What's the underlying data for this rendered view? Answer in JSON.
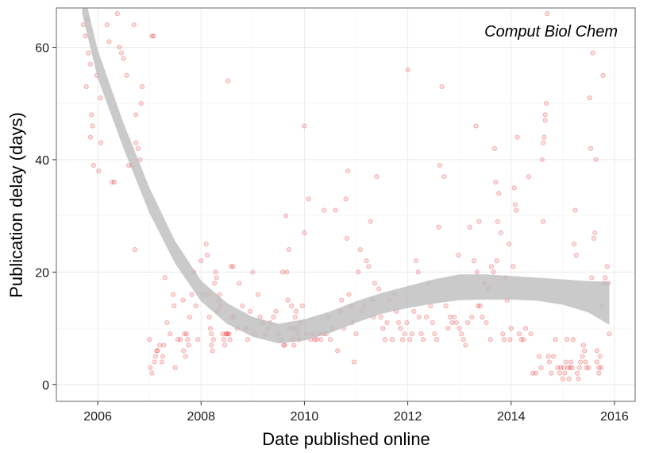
{
  "chart_data": {
    "type": "scatter",
    "title": "",
    "annotation": "Comput Biol Chem",
    "xlabel": "Date published online",
    "ylabel": "Publication delay (days)",
    "xlim": [
      2005.2,
      2016.4
    ],
    "ylim": [
      -3,
      67
    ],
    "x_ticks": [
      2006,
      2008,
      2010,
      2012,
      2014,
      2016
    ],
    "x_tick_labels": [
      "2006",
      "2008",
      "2010",
      "2012",
      "2014",
      "2016"
    ],
    "y_ticks": [
      0,
      20,
      40,
      60
    ],
    "y_tick_labels": [
      "0",
      "20",
      "40",
      "60"
    ],
    "grid": true,
    "colors": {
      "points": "#e41a1c",
      "ribbon": "#bdbdbd",
      "grid": "#ebebeb",
      "border": "#7f7f7f"
    },
    "smooth": {
      "x": [
        2005.7,
        2006.0,
        2006.5,
        2007.0,
        2007.5,
        2008.0,
        2008.5,
        2009.0,
        2009.5,
        2010.0,
        2010.5,
        2011.0,
        2011.5,
        2012.0,
        2012.5,
        2013.0,
        2013.5,
        2014.0,
        2014.5,
        2015.0,
        2015.5,
        2015.9
      ],
      "upper": [
        71.0,
        59.5,
        46.5,
        35.0,
        25.5,
        18.5,
        14.5,
        12.0,
        10.8,
        11.6,
        13.0,
        14.8,
        16.3,
        17.5,
        18.7,
        19.6,
        19.6,
        19.3,
        19.0,
        18.7,
        18.4,
        18.3
      ],
      "lower": [
        66.0,
        54.5,
        42.0,
        30.5,
        21.5,
        14.8,
        10.8,
        8.5,
        7.3,
        7.8,
        9.2,
        11.0,
        12.6,
        13.6,
        14.4,
        15.0,
        15.1,
        15.1,
        14.9,
        14.2,
        12.8,
        10.6
      ]
    },
    "points": [
      [
        2005.72,
        64
      ],
      [
        2005.76,
        62
      ],
      [
        2005.8,
        65
      ],
      [
        2005.78,
        53
      ],
      [
        2005.82,
        59
      ],
      [
        2005.86,
        57
      ],
      [
        2005.88,
        48
      ],
      [
        2005.9,
        46
      ],
      [
        2005.86,
        44
      ],
      [
        2005.92,
        39
      ],
      [
        2005.98,
        55
      ],
      [
        2006.05,
        51
      ],
      [
        2006.02,
        38
      ],
      [
        2006.06,
        43
      ],
      [
        2006.18,
        64
      ],
      [
        2006.22,
        61
      ],
      [
        2006.28,
        36
      ],
      [
        2006.32,
        36
      ],
      [
        2006.38,
        66
      ],
      [
        2006.42,
        60
      ],
      [
        2006.46,
        59
      ],
      [
        2006.5,
        58
      ],
      [
        2006.56,
        55
      ],
      [
        2006.6,
        39
      ],
      [
        2006.66,
        39
      ],
      [
        2006.7,
        64
      ],
      [
        2006.74,
        48
      ],
      [
        2006.74,
        43
      ],
      [
        2006.78,
        42
      ],
      [
        2006.82,
        40
      ],
      [
        2006.84,
        50
      ],
      [
        2006.86,
        53
      ],
      [
        2006.72,
        24
      ],
      [
        2007.05,
        62
      ],
      [
        2007.08,
        62
      ],
      [
        2007.0,
        8
      ],
      [
        2007.02,
        3
      ],
      [
        2007.05,
        2
      ],
      [
        2007.1,
        4
      ],
      [
        2007.12,
        5
      ],
      [
        2007.14,
        6
      ],
      [
        2007.16,
        6
      ],
      [
        2007.2,
        7
      ],
      [
        2007.24,
        4
      ],
      [
        2007.26,
        5
      ],
      [
        2007.28,
        7
      ],
      [
        2007.3,
        19
      ],
      [
        2007.34,
        11
      ],
      [
        2007.4,
        9
      ],
      [
        2007.46,
        16
      ],
      [
        2007.48,
        14
      ],
      [
        2007.5,
        3
      ],
      [
        2007.55,
        8
      ],
      [
        2007.6,
        8
      ],
      [
        2007.65,
        15
      ],
      [
        2007.68,
        9
      ],
      [
        2007.72,
        9
      ],
      [
        2007.74,
        8
      ],
      [
        2007.78,
        12
      ],
      [
        2007.82,
        16
      ],
      [
        2007.86,
        20
      ],
      [
        2007.9,
        14
      ],
      [
        2007.94,
        8
      ],
      [
        2007.66,
        6
      ],
      [
        2007.7,
        5
      ],
      [
        2007.76,
        7
      ],
      [
        2008.0,
        22
      ],
      [
        2008.04,
        16
      ],
      [
        2008.1,
        25
      ],
      [
        2008.12,
        23
      ],
      [
        2008.14,
        16
      ],
      [
        2008.16,
        12
      ],
      [
        2008.18,
        10
      ],
      [
        2008.2,
        9
      ],
      [
        2008.24,
        8
      ],
      [
        2008.26,
        18
      ],
      [
        2008.28,
        20
      ],
      [
        2008.3,
        19
      ],
      [
        2008.34,
        15
      ],
      [
        2008.38,
        14
      ],
      [
        2008.42,
        9
      ],
      [
        2008.44,
        8
      ],
      [
        2008.46,
        7
      ],
      [
        2008.48,
        9
      ],
      [
        2008.5,
        9
      ],
      [
        2008.52,
        9
      ],
      [
        2008.54,
        9
      ],
      [
        2008.56,
        8
      ],
      [
        2008.52,
        54
      ],
      [
        2008.58,
        21
      ],
      [
        2008.62,
        21
      ],
      [
        2008.64,
        12
      ],
      [
        2008.7,
        10
      ],
      [
        2008.74,
        18
      ],
      [
        2008.8,
        14
      ],
      [
        2008.86,
        10
      ],
      [
        2008.9,
        8
      ],
      [
        2008.95,
        13
      ],
      [
        2008.2,
        7
      ],
      [
        2008.22,
        6
      ],
      [
        2008.32,
        13
      ],
      [
        2008.36,
        16
      ],
      [
        2008.6,
        12
      ],
      [
        2009.0,
        20
      ],
      [
        2009.04,
        9
      ],
      [
        2009.1,
        16
      ],
      [
        2009.14,
        12
      ],
      [
        2009.2,
        11
      ],
      [
        2009.25,
        9
      ],
      [
        2009.3,
        10
      ],
      [
        2009.34,
        11
      ],
      [
        2009.4,
        12
      ],
      [
        2009.45,
        13
      ],
      [
        2009.5,
        9
      ],
      [
        2009.55,
        8
      ],
      [
        2009.58,
        20
      ],
      [
        2009.62,
        7
      ],
      [
        2009.64,
        30
      ],
      [
        2009.66,
        20
      ],
      [
        2009.68,
        15
      ],
      [
        2009.7,
        24
      ],
      [
        2009.72,
        10
      ],
      [
        2009.75,
        14
      ],
      [
        2009.78,
        8
      ],
      [
        2009.8,
        10
      ],
      [
        2009.82,
        12
      ],
      [
        2009.84,
        13
      ],
      [
        2009.86,
        10
      ],
      [
        2009.88,
        9
      ],
      [
        2009.9,
        8
      ],
      [
        2009.92,
        11
      ],
      [
        2009.96,
        14
      ],
      [
        2009.6,
        7
      ],
      [
        2009.8,
        7
      ],
      [
        2010.0,
        46
      ],
      [
        2010.0,
        27
      ],
      [
        2010.04,
        9
      ],
      [
        2010.08,
        33
      ],
      [
        2010.12,
        8
      ],
      [
        2010.16,
        9
      ],
      [
        2010.2,
        8
      ],
      [
        2010.24,
        8
      ],
      [
        2010.28,
        9
      ],
      [
        2010.32,
        8
      ],
      [
        2010.36,
        9
      ],
      [
        2010.38,
        31
      ],
      [
        2010.42,
        9
      ],
      [
        2010.46,
        12
      ],
      [
        2010.5,
        8
      ],
      [
        2010.55,
        10
      ],
      [
        2010.6,
        31
      ],
      [
        2010.64,
        6
      ],
      [
        2010.7,
        13
      ],
      [
        2010.72,
        15
      ],
      [
        2010.76,
        10
      ],
      [
        2010.8,
        33
      ],
      [
        2010.84,
        38
      ],
      [
        2010.82,
        26
      ],
      [
        2010.86,
        16
      ],
      [
        2010.9,
        14
      ],
      [
        2010.92,
        11
      ],
      [
        2010.96,
        4
      ],
      [
        2011.0,
        9
      ],
      [
        2011.04,
        20
      ],
      [
        2011.08,
        24
      ],
      [
        2011.12,
        13
      ],
      [
        2011.16,
        14
      ],
      [
        2011.2,
        22
      ],
      [
        2011.24,
        21
      ],
      [
        2011.28,
        29
      ],
      [
        2011.32,
        15
      ],
      [
        2011.34,
        12
      ],
      [
        2011.4,
        37
      ],
      [
        2011.36,
        18
      ],
      [
        2011.44,
        17
      ],
      [
        2011.48,
        12
      ],
      [
        2011.52,
        10
      ],
      [
        2011.56,
        8
      ],
      [
        2011.6,
        11
      ],
      [
        2011.64,
        15
      ],
      [
        2011.7,
        8
      ],
      [
        2011.74,
        16
      ],
      [
        2011.78,
        13
      ],
      [
        2011.82,
        11
      ],
      [
        2011.86,
        10
      ],
      [
        2011.9,
        8
      ],
      [
        2011.94,
        9
      ],
      [
        2011.98,
        11
      ],
      [
        2012.0,
        56
      ],
      [
        2012.04,
        8
      ],
      [
        2012.08,
        9
      ],
      [
        2012.12,
        13
      ],
      [
        2012.16,
        22
      ],
      [
        2012.2,
        20
      ],
      [
        2012.22,
        12
      ],
      [
        2012.26,
        9
      ],
      [
        2012.3,
        8
      ],
      [
        2012.36,
        12
      ],
      [
        2012.4,
        18
      ],
      [
        2012.44,
        14
      ],
      [
        2012.48,
        11
      ],
      [
        2012.52,
        9
      ],
      [
        2012.56,
        8
      ],
      [
        2012.6,
        28
      ],
      [
        2012.62,
        39
      ],
      [
        2012.66,
        53
      ],
      [
        2012.7,
        37
      ],
      [
        2012.74,
        14
      ],
      [
        2012.78,
        10
      ],
      [
        2012.82,
        12
      ],
      [
        2012.86,
        11
      ],
      [
        2012.9,
        12
      ],
      [
        2012.94,
        11
      ],
      [
        2012.98,
        23
      ],
      [
        2013.0,
        10
      ],
      [
        2013.04,
        9
      ],
      [
        2013.08,
        8
      ],
      [
        2013.12,
        7
      ],
      [
        2013.16,
        11
      ],
      [
        2013.2,
        28
      ],
      [
        2013.24,
        12
      ],
      [
        2013.28,
        22
      ],
      [
        2013.32,
        46
      ],
      [
        2013.34,
        20
      ],
      [
        2013.36,
        14
      ],
      [
        2013.38,
        29
      ],
      [
        2013.4,
        14
      ],
      [
        2013.44,
        12
      ],
      [
        2013.48,
        18
      ],
      [
        2013.52,
        11
      ],
      [
        2013.56,
        17
      ],
      [
        2013.6,
        8
      ],
      [
        2013.62,
        21
      ],
      [
        2013.66,
        20
      ],
      [
        2013.68,
        42
      ],
      [
        2013.7,
        36
      ],
      [
        2013.72,
        22
      ],
      [
        2013.74,
        29
      ],
      [
        2013.76,
        34
      ],
      [
        2013.8,
        27
      ],
      [
        2013.84,
        9
      ],
      [
        2013.86,
        8
      ],
      [
        2013.9,
        19
      ],
      [
        2013.92,
        15
      ],
      [
        2013.96,
        25
      ],
      [
        2013.98,
        8
      ],
      [
        2014.0,
        10
      ],
      [
        2014.04,
        21
      ],
      [
        2014.06,
        35
      ],
      [
        2014.08,
        32
      ],
      [
        2014.1,
        31
      ],
      [
        2014.12,
        44
      ],
      [
        2014.16,
        9
      ],
      [
        2014.2,
        8
      ],
      [
        2014.24,
        8
      ],
      [
        2014.28,
        10
      ],
      [
        2014.34,
        37
      ],
      [
        2014.38,
        9
      ],
      [
        2014.42,
        2
      ],
      [
        2014.48,
        2
      ],
      [
        2014.54,
        5
      ],
      [
        2014.58,
        3
      ],
      [
        2014.6,
        40
      ],
      [
        2014.62,
        43
      ],
      [
        2014.64,
        44
      ],
      [
        2014.66,
        47
      ],
      [
        2014.62,
        29
      ],
      [
        2014.68,
        50
      ],
      [
        2014.66,
        48
      ],
      [
        2014.7,
        66
      ],
      [
        2014.72,
        5
      ],
      [
        2014.74,
        4
      ],
      [
        2014.78,
        2
      ],
      [
        2014.82,
        5
      ],
      [
        2014.86,
        8
      ],
      [
        2014.9,
        3
      ],
      [
        2014.94,
        2
      ],
      [
        2014.96,
        3
      ],
      [
        2015.0,
        1
      ],
      [
        2015.02,
        3
      ],
      [
        2015.04,
        2
      ],
      [
        2015.06,
        4
      ],
      [
        2015.08,
        8
      ],
      [
        2015.1,
        3
      ],
      [
        2015.12,
        1
      ],
      [
        2015.14,
        3
      ],
      [
        2015.16,
        4
      ],
      [
        2015.18,
        3
      ],
      [
        2015.2,
        8
      ],
      [
        2015.22,
        25
      ],
      [
        2015.24,
        31
      ],
      [
        2015.26,
        23
      ],
      [
        2015.28,
        2
      ],
      [
        2015.3,
        1
      ],
      [
        2015.32,
        3
      ],
      [
        2015.34,
        4
      ],
      [
        2015.38,
        5
      ],
      [
        2015.4,
        7
      ],
      [
        2015.42,
        6
      ],
      [
        2015.44,
        4
      ],
      [
        2015.46,
        3
      ],
      [
        2015.5,
        3
      ],
      [
        2015.52,
        51
      ],
      [
        2015.54,
        42
      ],
      [
        2015.56,
        19
      ],
      [
        2015.58,
        59
      ],
      [
        2015.6,
        26
      ],
      [
        2015.62,
        27
      ],
      [
        2015.64,
        40
      ],
      [
        2015.66,
        4
      ],
      [
        2015.7,
        2
      ],
      [
        2015.72,
        5
      ],
      [
        2015.74,
        3
      ],
      [
        2015.76,
        14
      ],
      [
        2015.78,
        55
      ],
      [
        2015.8,
        18
      ],
      [
        2015.82,
        19
      ],
      [
        2015.86,
        21
      ],
      [
        2015.9,
        9
      ],
      [
        2015.88,
        18
      ],
      [
        2015.66,
        6
      ],
      [
        2015.7,
        3
      ]
    ]
  }
}
